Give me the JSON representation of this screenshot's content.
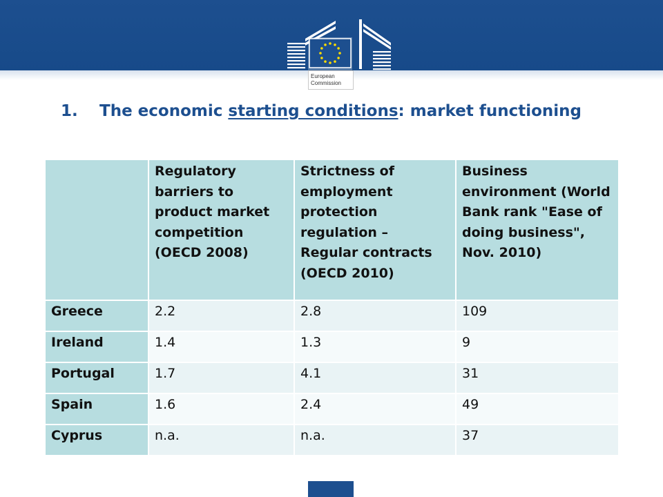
{
  "logo": {
    "line1": "European",
    "line2": "Commission"
  },
  "title": {
    "number": "1.",
    "part1": "The economic ",
    "underlined": "starting conditions",
    "part2": ": market functioning"
  },
  "table": {
    "headers": [
      "",
      "Regulatory barriers to product market competition (OECD 2008)",
      "Strictness of employment protection regulation – Regular contracts (OECD 2010)",
      "Business environment (World Bank rank \"Ease of doing business\", Nov. 2010)"
    ],
    "rows": [
      [
        "Greece",
        "2.2",
        "2.8",
        "109"
      ],
      [
        "Ireland",
        "1.4",
        "1.3",
        "9"
      ],
      [
        "Portugal",
        "1.7",
        "4.1",
        "31"
      ],
      [
        "Spain",
        "1.6",
        "2.4",
        "49"
      ],
      [
        "Cyprus",
        "n.a.",
        "n.a.",
        "37"
      ]
    ]
  },
  "colors": {
    "banner": "#1d4f8f",
    "title": "#1d4f8f",
    "header_cell": "#b7dde0",
    "row_alt_1": "#e9f3f5",
    "row_alt_2": "#f5fafb",
    "stars": "#ffdd00"
  }
}
